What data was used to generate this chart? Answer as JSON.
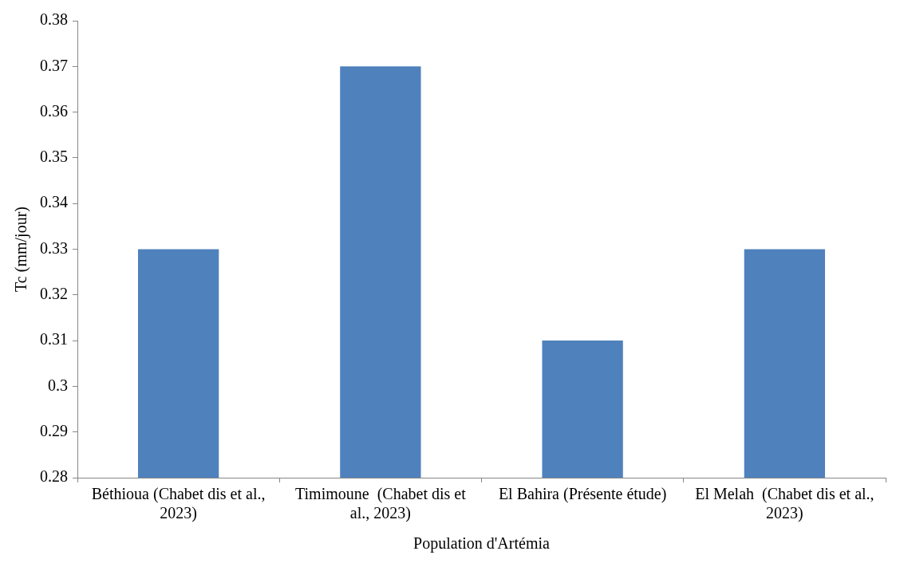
{
  "chart_data": {
    "type": "bar",
    "xlabel": "Population d'Artémia",
    "ylabel": "Tc (mm/jour)",
    "categories": [
      "Béthioua (Chabet dis et al., 2023)",
      "Timimoune  (Chabet dis et al., 2023)",
      "El Bahira (Présente étude)",
      "El Melah  (Chabet dis et al., 2023)"
    ],
    "values": [
      0.33,
      0.37,
      0.31,
      0.33
    ],
    "color": "#4f81bd",
    "ylim": [
      0.28,
      0.38
    ],
    "yticks": [
      0.28,
      0.29,
      0.3,
      0.31,
      0.32,
      0.33,
      0.34,
      0.35,
      0.36,
      0.37,
      0.38
    ],
    "grid": false,
    "legend": false
  }
}
